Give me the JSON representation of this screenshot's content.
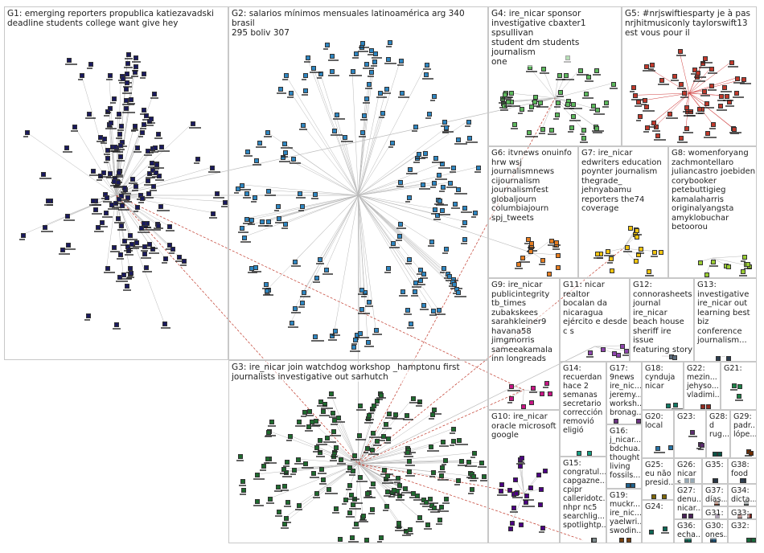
{
  "groups": [
    {
      "id": "G1",
      "text": "G1: emerging reporters propublica katiezavadski\ndeadline students college want give hey",
      "color": "#1a1a5e"
    },
    {
      "id": "G2",
      "text": "G2: salarios mínimos mensuales latinoamérica arg 340 brasil\n295 boliv 307",
      "color": "#2e86c1"
    },
    {
      "id": "G3",
      "text": "G3: ire_nicar join watchdog workshop _hamptonu first\njournalists investigative out sarhutch",
      "color": "#1e6b2e"
    },
    {
      "id": "G4",
      "text": "G4: ire_nicar sponsor\ninvestigative cbaxter1 spsullivan\nstudent dm students journalism\none",
      "color": "#5cb85c"
    },
    {
      "id": "G5",
      "text": "G5: #nrjswiftiesparty je à pas\nnrjhitmusiconly taylorswift13\nest vous pour il",
      "color": "#c0392b"
    },
    {
      "id": "G6",
      "text": "G6: itvnews onuinfo\nhrw wsj\njournalismnews\ncijournalism\njournalismfest\nglobaljourn\ncolumbiajourn\nspj_tweets",
      "color": "#e67e22"
    },
    {
      "id": "G7",
      "text": "G7: ire_nicar\nedwriters education\npoynter journalism\nthegrade_\njehnyabamu\nreporters the74\ncoverage",
      "color": "#f1c40f"
    },
    {
      "id": "G8",
      "text": "G8: womenforyang\nzachmontellaro\njuliancastro joebiden\ncorybooker\npetebuttigieg\nkamalaharris\noriginalyangsta\namyklobuchar\nbetoorou",
      "color": "#9acd32"
    },
    {
      "id": "G9",
      "text": "G9: ire_nicar\npublicintegrity\ntb_times\nzubakskees\nsarahkleiner9\nhavana58\njimgmorris\nsameeakamala\ninn longreads",
      "color": "#c71585"
    },
    {
      "id": "G10",
      "text": "G10: ire_nicar\noracle microsoft\ngoogle",
      "color": "#4b0082"
    },
    {
      "id": "G11",
      "text": "G11: nicar realtor\nbocalan da\nnicaragua\nejército e desde\nc s",
      "color": "#8e44ad"
    },
    {
      "id": "G12",
      "text": "G12:\nconnorasheets\njournal\nire_nicar\nbeach house\nsheriff ire issue\nfeaturing story",
      "color": "#5d6d7e"
    },
    {
      "id": "G13",
      "text": "G13:\ninvestigative\nire_nicar out\nlearning best\nbiz\nconference\njournalism...",
      "color": "#2c3e50"
    },
    {
      "id": "G14",
      "text": "G14:\nrecuerdan\nhace 2\nsemanas\nsecretario\ncorrección\nremovió\neligió",
      "color": "#16a085"
    },
    {
      "id": "G15",
      "text": "G15:\ncongratul...\ncapgazne...\ncpipr\ncalleridotc...\nnhpr nc5\nsearchlig...\nspotlightp...",
      "color": "#7f8c8d"
    },
    {
      "id": "G16",
      "text": "G16:\nj_nicar...\nbdchua...\nthought\nliving\nfossils...",
      "color": "#1f618d"
    },
    {
      "id": "G17",
      "text": "G17:\n9news\nire_nic...\njeremy...\nworksh...\nbronag...",
      "color": "#6c3483"
    },
    {
      "id": "G18",
      "text": "G18:\ncynduja\nnicar",
      "color": "#117864"
    },
    {
      "id": "G19",
      "text": "G19:\nmuckr...\nire_nic...\nyaelwri...\nswodin...",
      "color": "#784212"
    },
    {
      "id": "G20",
      "text": "G20:\nlocal",
      "color": "#2874a6"
    },
    {
      "id": "G21",
      "text": "G21:",
      "color": "#1d8348"
    },
    {
      "id": "G22",
      "text": "G22:\nmezin...\njehyso...\nvladimi...",
      "color": "#922b21"
    },
    {
      "id": "G23",
      "text": "G23:",
      "color": "#5b2c6f"
    },
    {
      "id": "G24",
      "text": "G24:",
      "color": "#0e6655"
    },
    {
      "id": "G25",
      "text": "G25:\neu não\npresid...",
      "color": "#7d6608"
    },
    {
      "id": "G26",
      "text": "G26:\nnicar s",
      "color": "#154360"
    },
    {
      "id": "G27",
      "text": "G27:\ndenu...\nnicar...",
      "color": "#4a235a"
    },
    {
      "id": "G28",
      "text": "G28:\nd\nrug...",
      "color": "#0b5345"
    },
    {
      "id": "G29",
      "text": "G29:\npadr...\nlópe...",
      "color": "#6e2c00"
    },
    {
      "id": "G30",
      "text": "G30:\nones...",
      "color": "#1b4f72"
    },
    {
      "id": "G31",
      "text": "G31:\nyu...",
      "color": "#512e5f"
    },
    {
      "id": "G32",
      "text": "G32:",
      "color": "#186a3b"
    },
    {
      "id": "G33",
      "text": "G33:",
      "color": "#7b241c"
    },
    {
      "id": "G34",
      "text": "G34:\ndicta...",
      "color": "#4d5656"
    },
    {
      "id": "G35",
      "text": "G35:\n",
      "color": "#283747"
    },
    {
      "id": "G36",
      "text": "G36:\necha...",
      "color": "#0e6251"
    },
    {
      "id": "G37",
      "text": "G37:\ndías...",
      "color": "#6e2f1a"
    },
    {
      "id": "G38",
      "text": "G38:\nfood",
      "color": "#2e4053"
    }
  ]
}
